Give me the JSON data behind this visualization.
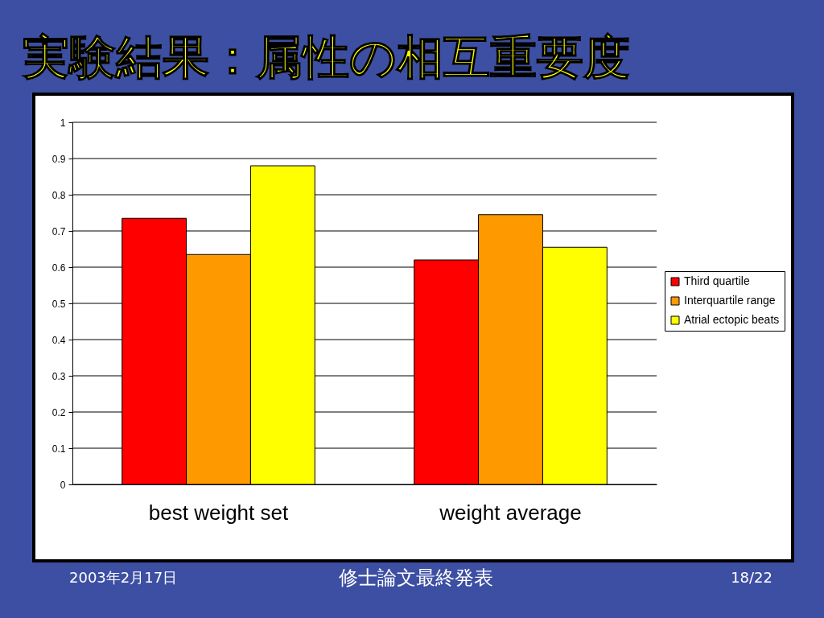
{
  "chart_data": {
    "type": "bar",
    "title": "実験結果：属性の相互重要度",
    "categories": [
      "best weight set",
      "weight average"
    ],
    "series": [
      {
        "name": "Third quartile",
        "color": "#ff0000",
        "values": [
          0.735,
          0.62
        ]
      },
      {
        "name": "Interquartile range",
        "color": "#ff9900",
        "values": [
          0.635,
          0.745
        ]
      },
      {
        "name": "Atrial ectopic beats",
        "color": "#ffff00",
        "values": [
          0.88,
          0.655
        ]
      }
    ],
    "ylim": [
      0,
      1
    ],
    "yticks": [
      0,
      0.1,
      0.2,
      0.3,
      0.4,
      0.5,
      0.6,
      0.7,
      0.8,
      0.9,
      1
    ],
    "grid": "y",
    "legend": "right",
    "annotations": [
      "2003年2月17日",
      "修士論文最終発表",
      "18/22"
    ]
  }
}
